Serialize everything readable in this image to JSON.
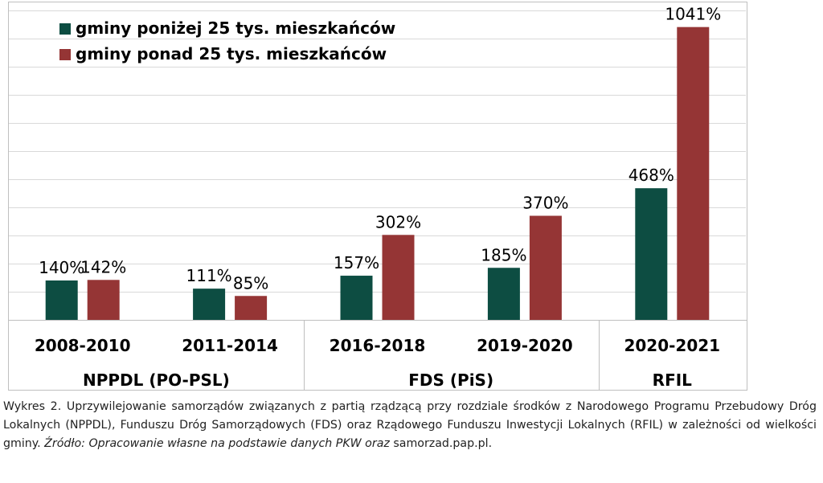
{
  "chart_data": {
    "type": "bar",
    "categories": [
      "2008-2010",
      "2011-2014",
      "2016-2018",
      "2019-2020",
      "2020-2021"
    ],
    "groups": [
      {
        "label": "NPPDL (PO-PSL)",
        "categories": [
          "2008-2010",
          "2011-2014"
        ]
      },
      {
        "label": "FDS (PiS)",
        "categories": [
          "2016-2018",
          "2019-2020"
        ]
      },
      {
        "label": "RFIL",
        "categories": [
          "2020-2021"
        ]
      }
    ],
    "series": [
      {
        "name": "gminy poniżej 25 tys. mieszkańców",
        "color": "#0d4d42",
        "values": [
          140,
          111,
          157,
          185,
          468
        ],
        "labels": [
          "140%",
          "111%",
          "157%",
          "185%",
          "468%"
        ]
      },
      {
        "name": "gminy ponad 25 tys. mieszkańców",
        "color": "#953535",
        "values": [
          142,
          85,
          302,
          370,
          1041
        ],
        "labels": [
          "142%",
          "85%",
          "302%",
          "370%",
          "1041%"
        ]
      }
    ],
    "ylim": [
      0,
      1100
    ],
    "grid": true,
    "legend": "top-left",
    "ytick_step": 100
  },
  "caption": {
    "main": "Wykres 2. Uprzywilejowanie samorządów związanych z partią rządzącą przy rozdziale środków z Narodowego Programu Przebudowy Dróg Lokalnych (NPPDL), Funduszu Dróg Samorządowych (FDS) oraz Rządowego Funduszu Inwestycji Lokalnych (RFIL) w zależności od wielkości gminy. ",
    "source": "Źródło: Opracowanie własne na podstawie danych PKW oraz",
    "tail": " samorzad.pap.pl."
  }
}
